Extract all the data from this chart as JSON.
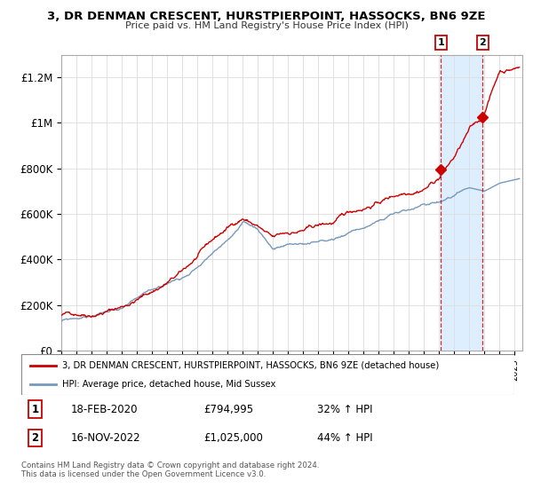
{
  "title": "3, DR DENMAN CRESCENT, HURSTPIERPOINT, HASSOCKS, BN6 9ZE",
  "subtitle": "Price paid vs. HM Land Registry's House Price Index (HPI)",
  "ylabel_ticks": [
    "£0",
    "£200K",
    "£400K",
    "£600K",
    "£800K",
    "£1M",
    "£1.2M"
  ],
  "ytick_vals": [
    0,
    200000,
    400000,
    600000,
    800000,
    1000000,
    1200000
  ],
  "ylim": [
    0,
    1300000
  ],
  "xlim_start": 1995.0,
  "xlim_end": 2025.5,
  "red_line_color": "#cc0000",
  "blue_line_color": "#7799bb",
  "shade_color": "#ddeeff",
  "marker1_date": 2020.12,
  "marker1_price": 794995,
  "marker2_date": 2022.88,
  "marker2_price": 1025000,
  "legend_label_red": "3, DR DENMAN CRESCENT, HURSTPIERPOINT, HASSOCKS, BN6 9ZE (detached house)",
  "legend_label_blue": "HPI: Average price, detached house, Mid Sussex",
  "table_row1": [
    "1",
    "18-FEB-2020",
    "£794,995",
    "32% ↑ HPI"
  ],
  "table_row2": [
    "2",
    "16-NOV-2022",
    "£1,025,000",
    "44% ↑ HPI"
  ],
  "footer": "Contains HM Land Registry data © Crown copyright and database right 2024.\nThis data is licensed under the Open Government Licence v3.0.",
  "background_color": "#ffffff",
  "grid_color": "#dddddd"
}
